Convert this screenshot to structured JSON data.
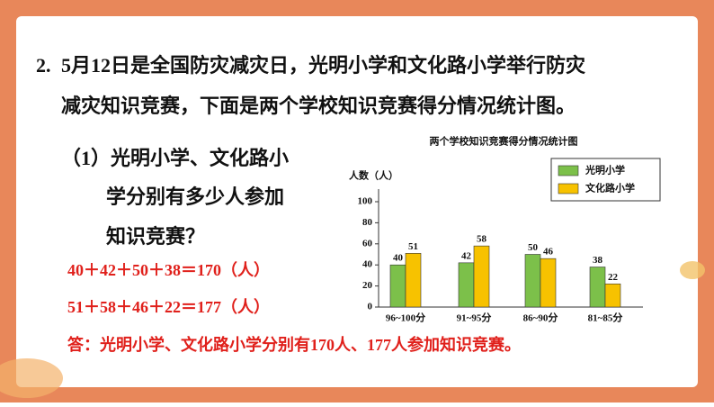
{
  "question": {
    "number": "2.",
    "lines": [
      "5月12日是全国防灾减灾日，光明小学和文化路小学举行防灾",
      "减灾知识竞赛，下面是两个学校知识竞赛得分情况统计图。"
    ]
  },
  "sub_question": {
    "lines": [
      "（1）光明小学、文化路小",
      "学分别有多少人参加",
      "知识竞赛？"
    ]
  },
  "answer": {
    "lines": [
      "40＋42＋50＋38＝170（人）",
      "51＋58＋46＋22＝177（人）",
      "答：光明小学、文化路小学分别有170人、177人参加知识竞赛。"
    ]
  },
  "chart": {
    "type": "bar",
    "title": "两个学校知识竞赛得分情况统计图",
    "y_label": "人数（人）",
    "categories": [
      "96~100分",
      "91~95分",
      "86~90分",
      "81~85分"
    ],
    "series": [
      {
        "name": "光明小学",
        "color": "#7cc04a",
        "values": [
          40,
          42,
          50,
          38
        ]
      },
      {
        "name": "文化路小学",
        "color": "#f7c200",
        "values": [
          51,
          58,
          46,
          22
        ]
      }
    ],
    "ylim": [
      0,
      100
    ],
    "yticks": [
      0,
      20,
      40,
      60,
      80,
      100
    ],
    "legend": "upper right"
  }
}
